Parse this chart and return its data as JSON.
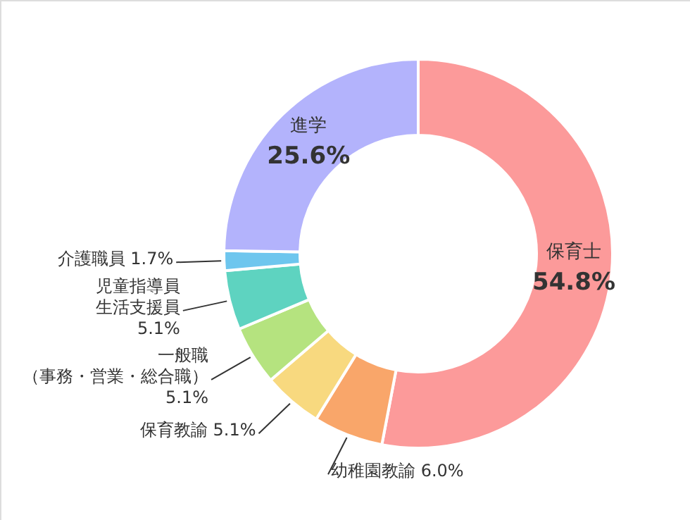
{
  "chart_data": {
    "type": "donut",
    "categories": [
      "保育士",
      "幼稚園教諭",
      "保育教諭",
      "一般職（事務・営業・総合職）",
      "児童指導員生活支援員",
      "介護職員",
      "進学"
    ],
    "values": [
      54.8,
      6.0,
      5.1,
      5.1,
      5.1,
      1.7,
      25.6
    ],
    "value_labels": [
      "54.8%",
      "6.0%",
      "5.1%",
      "5.1%",
      "5.1%",
      "1.7%",
      "25.6%"
    ],
    "colors": [
      "#fc9a9a",
      "#f9a66a",
      "#f8d97f",
      "#b5e37f",
      "#5ed3c0",
      "#6ec6ee",
      "#b3b3fc"
    ]
  }
}
